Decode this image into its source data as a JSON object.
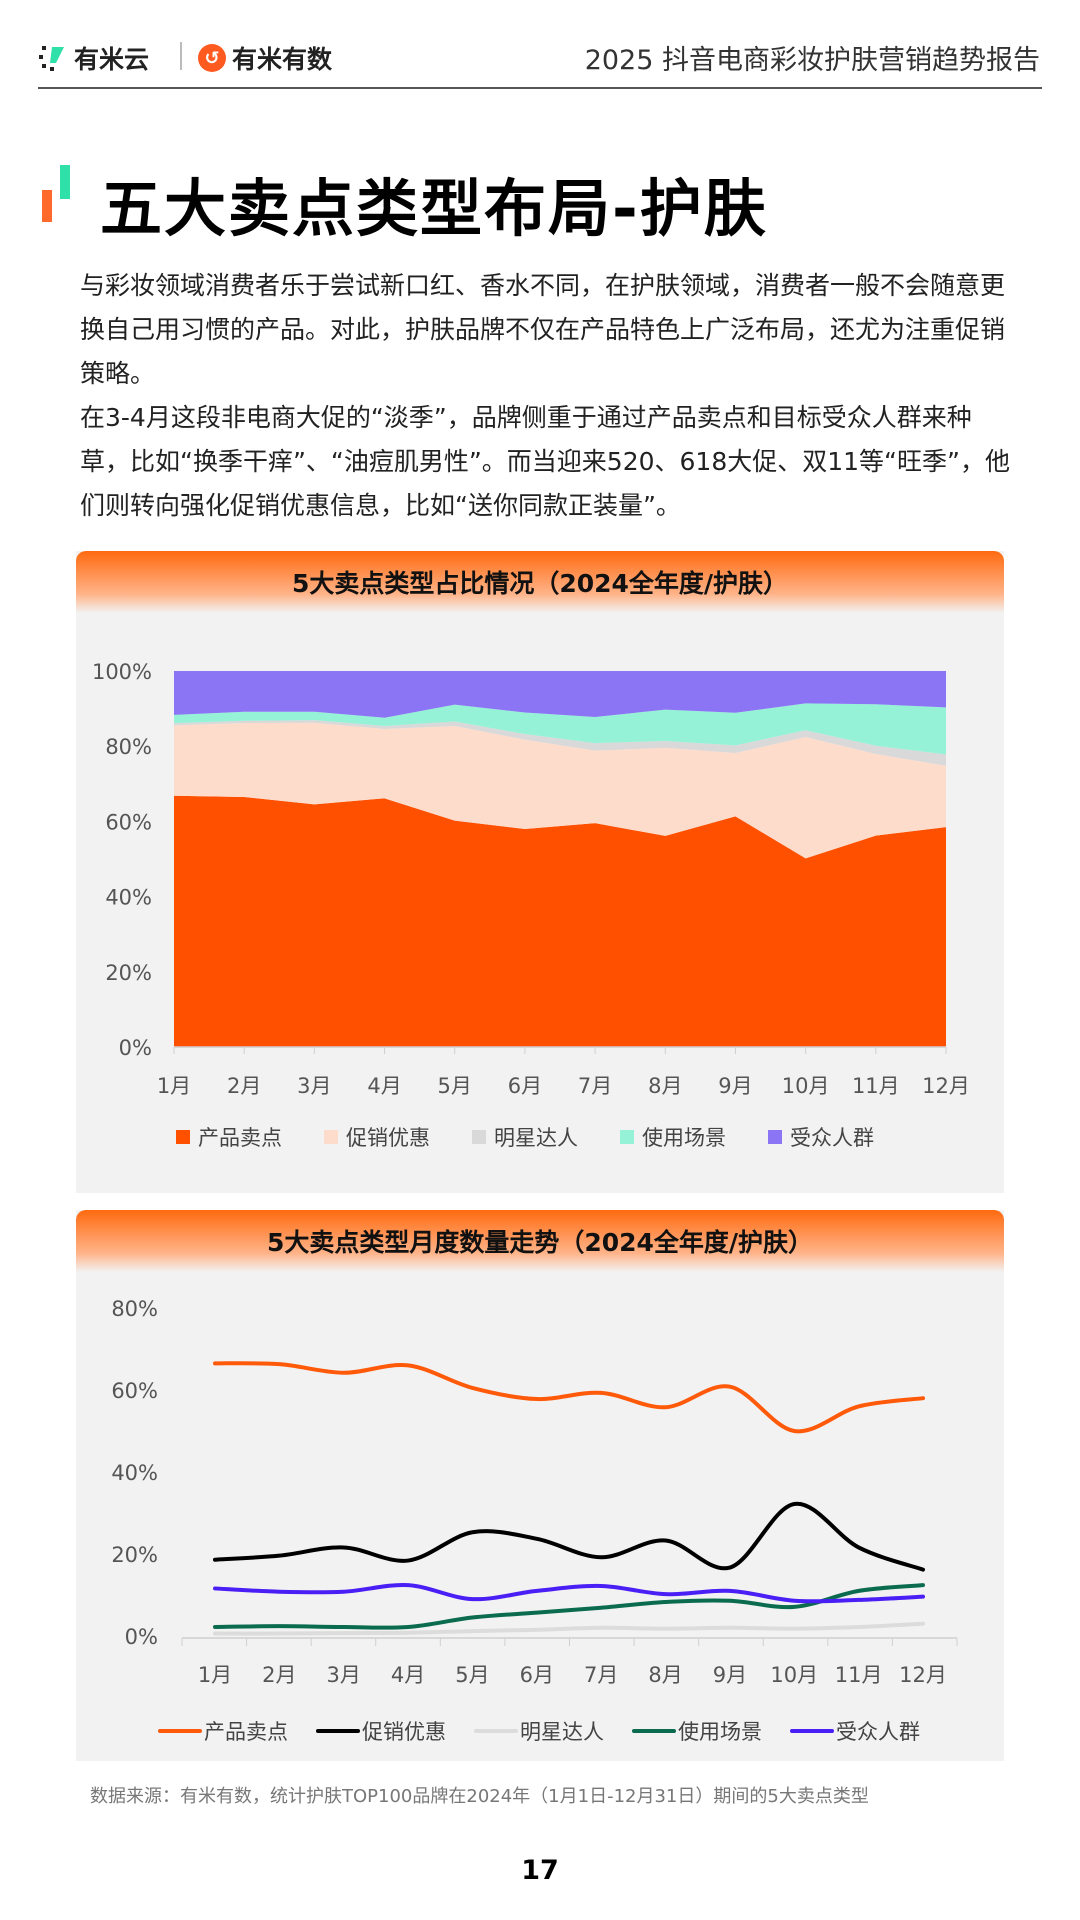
{
  "header": {
    "logo_left": "有米云",
    "logo_right": "有米有数",
    "report_title": "2025 抖音电商彩妆护肤营销趋势报告"
  },
  "page_title": "五大卖点类型布局-护肤",
  "paragraphs": [
    "与彩妆领域消费者乐于尝试新口红、香水不同，在护肤领域，消费者一般不会随意更换自己用习惯的产品。对此，护肤品牌不仅在产品特色上广泛布局，还尤为注重促销策略。",
    "在3-4月这段非电商大促的“淡季”，品牌侧重于通过产品卖点和目标受众人群来种草，比如“换季干痒”、“油痘肌男性”。而当迎来520、618大促、双11等“旺季”，他们则转向强化促销优惠信息，比如“送你同款正装量”。"
  ],
  "chart_data": [
    {
      "type": "area",
      "stacked": true,
      "normalized": true,
      "title": "5大卖点类型占比情况（2024全年度/护肤）",
      "categories": [
        "1月",
        "2月",
        "3月",
        "4月",
        "5月",
        "6月",
        "7月",
        "8月",
        "9月",
        "10月",
        "11月",
        "12月"
      ],
      "yticks": [
        "0%",
        "20%",
        "40%",
        "60%",
        "80%",
        "100%"
      ],
      "ylim": [
        0,
        100
      ],
      "legend_position": "bottom",
      "series": [
        {
          "name": "产品卖点",
          "color": "#ff5000",
          "values": [
            66.5,
            66.3,
            64.2,
            66,
            60.5,
            57.8,
            59.3,
            55.8,
            60.8,
            50,
            56,
            58
          ]
        },
        {
          "name": "促销优惠",
          "color": "#fddccc",
          "values": [
            18.6,
            19.6,
            21.6,
            18.4,
            25.3,
            23.7,
            19.2,
            23.3,
            16.7,
            32.2,
            21.6,
            16.2
          ]
        },
        {
          "name": "明星达人",
          "color": "#d9d9d9",
          "values": [
            0.6,
            0.6,
            0.7,
            0.8,
            1.2,
            1.5,
            2,
            1.8,
            2,
            1.8,
            2.2,
            3
          ]
        },
        {
          "name": "使用场景",
          "color": "#96f2d7",
          "values": [
            2.2,
            2.4,
            2.2,
            2.2,
            4.5,
            5.7,
            6.9,
            8.3,
            8.6,
            7.1,
            11,
            12.4
          ]
        },
        {
          "name": "受众人群",
          "color": "#8b75f5",
          "values": [
            11.6,
            10.8,
            10.8,
            12.4,
            9,
            11,
            12.2,
            10.2,
            11,
            8.6,
            8.8,
            9.6
          ]
        }
      ]
    },
    {
      "type": "line",
      "title": "5大卖点类型月度数量走势（2024全年度/护肤）",
      "categories": [
        "1月",
        "2月",
        "3月",
        "4月",
        "5月",
        "6月",
        "7月",
        "8月",
        "9月",
        "10月",
        "11月",
        "12月"
      ],
      "yticks": [
        "0%",
        "20%",
        "40%",
        "60%",
        "80%"
      ],
      "ylim": [
        0,
        80
      ],
      "legend_position": "bottom",
      "series": [
        {
          "name": "产品卖点",
          "color": "#ff5a0a",
          "values": [
            66.5,
            66.3,
            64.2,
            66,
            60.5,
            57.8,
            59.3,
            55.8,
            60.8,
            50,
            56,
            58
          ]
        },
        {
          "name": "促销优惠",
          "color": "#000000",
          "values": [
            18.6,
            19.6,
            21.6,
            18.4,
            25.3,
            23.7,
            19.2,
            23.3,
            16.7,
            32.2,
            21.6,
            16.2
          ]
        },
        {
          "name": "明星达人",
          "color": "#dcdcdc",
          "values": [
            0.6,
            0.6,
            0.7,
            0.8,
            1.2,
            1.5,
            2,
            1.8,
            2,
            1.8,
            2.2,
            3
          ]
        },
        {
          "name": "使用场景",
          "color": "#0b6b4f",
          "values": [
            2.2,
            2.4,
            2.2,
            2.2,
            4.5,
            5.7,
            6.9,
            8.3,
            8.6,
            7.1,
            11,
            12.4
          ]
        },
        {
          "name": "受众人群",
          "color": "#4a1ff5",
          "values": [
            11.6,
            10.8,
            10.8,
            12.4,
            9,
            11,
            12.2,
            10.2,
            11,
            8.6,
            8.8,
            9.6
          ]
        }
      ]
    }
  ],
  "footnote": "数据来源：有米有数，统计护肤TOP100品牌在2024年（1月1日-12月31日）期间的5大卖点类型",
  "page_number": "17"
}
